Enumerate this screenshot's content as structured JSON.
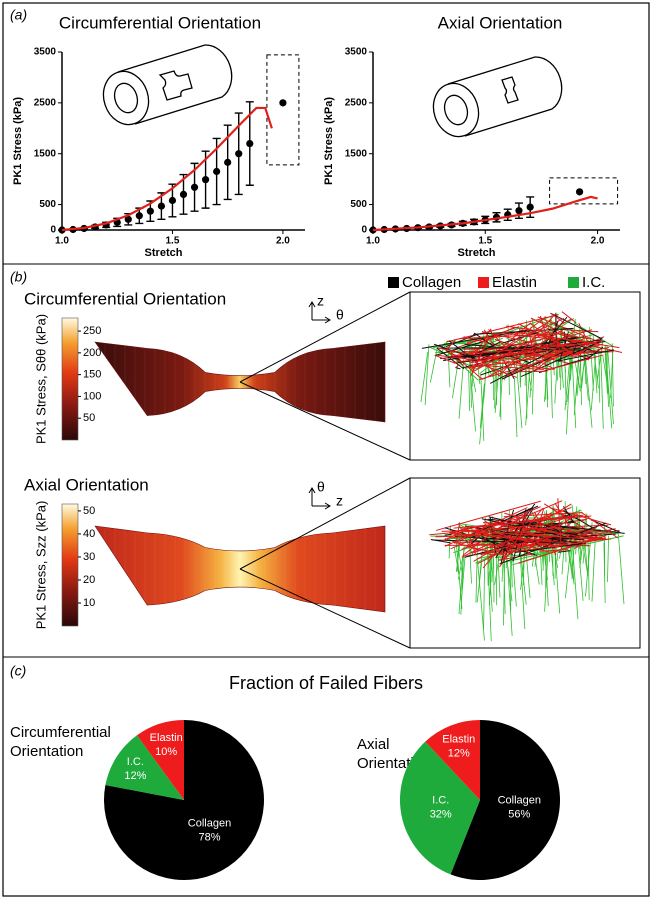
{
  "panel_labels": [
    "(a)",
    "(b)",
    "(c)"
  ],
  "chart_data": [
    {
      "type": "line",
      "title": "Circumferential Orientation",
      "xlabel": "Stretch",
      "ylabel": "PK1 Stress (kPa)",
      "xlim": [
        1.0,
        2.1
      ],
      "ylim": [
        0,
        3500
      ],
      "xticks": [
        {
          "value": 1.0,
          "label": "1.0"
        },
        1.5,
        {
          "value": 2.0,
          "label": "2.0"
        }
      ],
      "yticks": [
        0,
        500,
        1500,
        2500,
        3500
      ],
      "series": [
        {
          "style": "points",
          "color": "#000000",
          "x": [
            1.0,
            1.05,
            1.1,
            1.15,
            1.2,
            1.25,
            1.3,
            1.35,
            1.4,
            1.45,
            1.5,
            1.55,
            1.6,
            1.65,
            1.7,
            1.75,
            1.8,
            1.85
          ],
          "values": [
            0,
            10,
            30,
            60,
            100,
            150,
            210,
            280,
            370,
            470,
            580,
            700,
            840,
            990,
            1150,
            1330,
            1500,
            1700
          ],
          "errors": [
            0,
            5,
            15,
            30,
            50,
            80,
            110,
            150,
            200,
            260,
            320,
            390,
            470,
            560,
            650,
            730,
            800,
            820
          ]
        },
        {
          "style": "points",
          "boxed": true,
          "color": "#000000",
          "x": [
            2.0
          ],
          "values": [
            2500
          ]
        },
        {
          "style": "line",
          "color": "#e0201b",
          "x": [
            1.0,
            1.1,
            1.2,
            1.3,
            1.4,
            1.5,
            1.6,
            1.7,
            1.8,
            1.88,
            1.92,
            1.95
          ],
          "values": [
            0,
            40,
            130,
            290,
            520,
            820,
            1180,
            1600,
            2050,
            2400,
            2400,
            2000
          ]
        }
      ]
    },
    {
      "type": "line",
      "title": "Axial Orientation",
      "xlabel": "Stretch",
      "ylabel": "PK1 Stress (kPa)",
      "xlim": [
        1.0,
        2.1
      ],
      "ylim": [
        0,
        3500
      ],
      "xticks": [
        {
          "value": 1.0,
          "label": "1.0"
        },
        1.5,
        {
          "value": 2.0,
          "label": "2.0"
        }
      ],
      "yticks": [
        0,
        500,
        1500,
        2500,
        3500
      ],
      "series": [
        {
          "style": "points",
          "color": "#000000",
          "x": [
            1.0,
            1.05,
            1.1,
            1.15,
            1.2,
            1.25,
            1.3,
            1.35,
            1.4,
            1.45,
            1.5,
            1.55,
            1.6,
            1.65,
            1.7
          ],
          "values": [
            0,
            10,
            20,
            30,
            45,
            60,
            80,
            100,
            130,
            160,
            200,
            250,
            300,
            380,
            450
          ],
          "errors": [
            0,
            5,
            8,
            10,
            15,
            20,
            25,
            30,
            40,
            50,
            70,
            90,
            110,
            150,
            200
          ]
        },
        {
          "style": "points",
          "boxed": true,
          "color": "#000000",
          "x": [
            1.92
          ],
          "values": [
            750
          ]
        },
        {
          "style": "line",
          "color": "#e0201b",
          "x": [
            1.0,
            1.2,
            1.4,
            1.6,
            1.7,
            1.8,
            1.9,
            1.97,
            2.0
          ],
          "values": [
            0,
            50,
            130,
            260,
            330,
            420,
            560,
            650,
            620
          ]
        }
      ]
    },
    {
      "type": "pie",
      "label": [
        "Circumferential",
        "Orientation"
      ],
      "categories": [
        "Collagen",
        "I.C.",
        "Elastin"
      ],
      "values": [
        78,
        12,
        10
      ],
      "value_labels": [
        "78%",
        "12%",
        "10%"
      ],
      "colors": [
        "#000000",
        "#1faa3c",
        "#ee1c1c"
      ]
    },
    {
      "type": "pie",
      "label": [
        "Axial",
        "Orientation"
      ],
      "categories": [
        "Collagen",
        "I.C.",
        "Elastin"
      ],
      "values": [
        56,
        32,
        12
      ],
      "value_labels": [
        "56%",
        "32%",
        "12%"
      ],
      "colors": [
        "#000000",
        "#1faa3c",
        "#ee1c1c"
      ]
    }
  ],
  "panel_b": {
    "legend": [
      {
        "name": "Collagen",
        "color": "#000000"
      },
      {
        "name": "Elastin",
        "color": "#ee1c1c"
      },
      {
        "name": "I.C.",
        "color": "#1faa3c"
      }
    ],
    "views": [
      {
        "title": "Circumferential Orientation",
        "colorbar_label": "PK1 Stress, Sθθ (kPa)",
        "axes": [
          "z",
          "θ"
        ],
        "clim": [
          0,
          280
        ],
        "cticks": [
          50,
          100,
          150,
          200,
          250
        ]
      },
      {
        "title": "Axial Orientation",
        "colorbar_label": "PK1 Stress, Szz (kPa)",
        "axes": [
          "θ",
          "z"
        ],
        "clim": [
          0,
          53
        ],
        "cticks": [
          10,
          20,
          30,
          40,
          50
        ]
      }
    ]
  },
  "panel_c": {
    "title": "Fraction of Failed Fibers"
  }
}
